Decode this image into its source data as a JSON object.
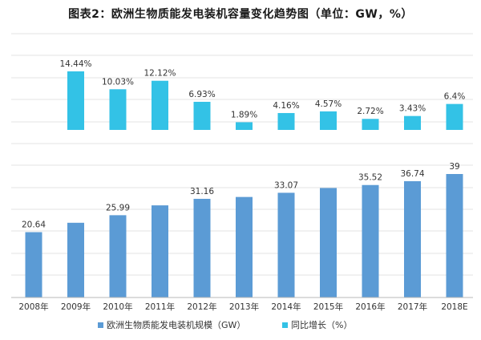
{
  "title": "图表2：欧洲生物质能发电装机容量变化趋势图（单位：GW，%）",
  "chart_data": [
    {
      "type": "bar",
      "name": "capacity",
      "categories": [
        "2008年",
        "2009年",
        "2010年",
        "2011年",
        "2012年",
        "2013年",
        "2014年",
        "2015年",
        "2016年",
        "2017年",
        "2018E"
      ],
      "series": [
        {
          "name": "欧洲生物质能发电装机规模（GW）",
          "values": [
            20.64,
            23.6,
            25.99,
            29.1,
            31.16,
            31.75,
            33.07,
            34.58,
            35.52,
            36.74,
            39
          ],
          "labels": [
            "20.64",
            "",
            "25.99",
            "",
            "31.16",
            "",
            "33.07",
            "",
            "35.52",
            "36.74",
            "39"
          ]
        }
      ],
      "ylim": [
        0,
        41
      ],
      "grid": true,
      "color": "#5b9bd5"
    },
    {
      "type": "bar",
      "name": "growth",
      "categories": [
        "2009年",
        "2010年",
        "2011年",
        "2012年",
        "2013年",
        "2014年",
        "2015年",
        "2016年",
        "2017年",
        "2018E"
      ],
      "series": [
        {
          "name": "同比增长（%）",
          "values": [
            14.44,
            10.03,
            12.12,
            6.93,
            1.89,
            4.16,
            4.57,
            2.72,
            3.43,
            6.4
          ],
          "labels": [
            "14.44%",
            "10.03%",
            "12.12%",
            "6.93%",
            "1.89%",
            "4.16%",
            "4.57%",
            "2.72%",
            "3.43%",
            "6.4%"
          ]
        }
      ],
      "ylim": [
        0,
        16
      ],
      "grid": true,
      "color": "#33c2e6"
    }
  ],
  "legend": [
    {
      "label": "欧洲生物质能发电装机规模（GW）",
      "color": "#5b9bd5"
    },
    {
      "label": "同比增长（%）",
      "color": "#33c2e6"
    }
  ]
}
